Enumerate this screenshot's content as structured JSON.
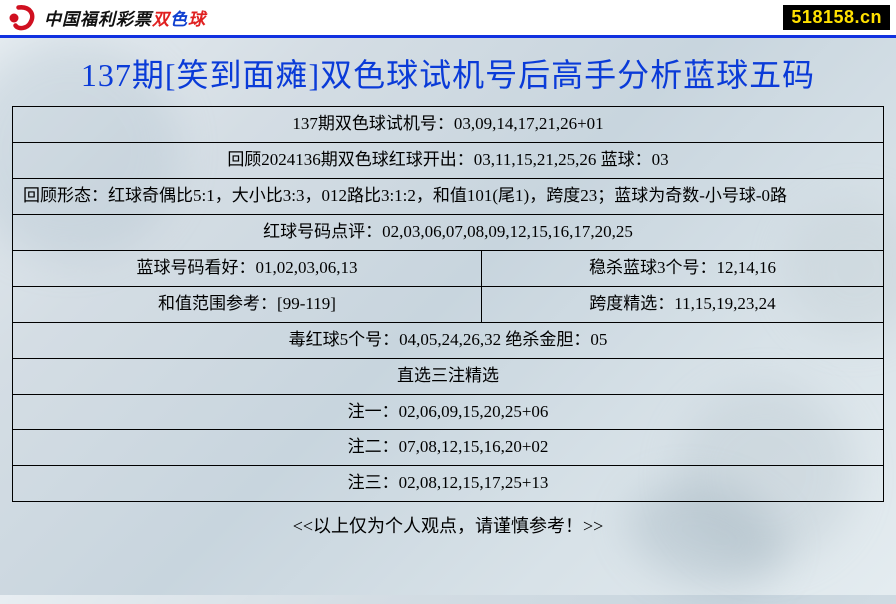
{
  "topbar": {
    "brand_black": "中国福利彩票",
    "brand_red": "双",
    "brand_blue": "色",
    "brand_red2": "球",
    "site_tag": "518158.cn",
    "logo_color_main": "#d01020",
    "tag_bg": "#000000",
    "tag_fg": "#ffe000",
    "border_color": "#1131e0"
  },
  "title": {
    "text": "137期[笑到面瘫]双色球试机号后高手分析蓝球五码",
    "color": "#0a3bd8",
    "fontsize": 32
  },
  "table": {
    "border_color": "#000000",
    "fontsize": 17,
    "rows": [
      {
        "cells": [
          {
            "text": "137期双色球试机号：03,09,14,17,21,26+01",
            "colspan": 2
          }
        ]
      },
      {
        "cells": [
          {
            "text": "回顾2024136期双色球红球开出：03,11,15,21,25,26 蓝球：03",
            "colspan": 2
          }
        ]
      },
      {
        "cells": [
          {
            "text": "回顾形态：红球奇偶比5:1，大小比3:3，012路比3:1:2，和值101(尾1)，跨度23；蓝球为奇数-小号球-0路",
            "colspan": 2,
            "align": "left"
          }
        ]
      },
      {
        "cells": [
          {
            "text": "红球号码点评：02,03,06,07,08,09,12,15,16,17,20,25",
            "colspan": 2
          }
        ]
      },
      {
        "cells": [
          {
            "text": "蓝球号码看好：01,02,03,06,13"
          },
          {
            "text": "稳杀蓝球3个号：12,14,16"
          }
        ]
      },
      {
        "cells": [
          {
            "text": "和值范围参考：[99-119]"
          },
          {
            "text": "跨度精选：11,15,19,23,24"
          }
        ]
      },
      {
        "cells": [
          {
            "text": "毒红球5个号：04,05,24,26,32 绝杀金胆：05",
            "colspan": 2
          }
        ]
      },
      {
        "cells": [
          {
            "text": "直选三注精选",
            "colspan": 2
          }
        ]
      },
      {
        "cells": [
          {
            "text": "注一：02,06,09,15,20,25+06",
            "colspan": 2
          }
        ]
      },
      {
        "cells": [
          {
            "text": "注二：07,08,12,15,16,20+02",
            "colspan": 2
          }
        ]
      },
      {
        "cells": [
          {
            "text": "注三：02,08,12,15,17,25+13",
            "colspan": 2
          }
        ]
      }
    ]
  },
  "footnote": {
    "text": "<<以上仅为个人观点，请谨慎参考！>>"
  }
}
